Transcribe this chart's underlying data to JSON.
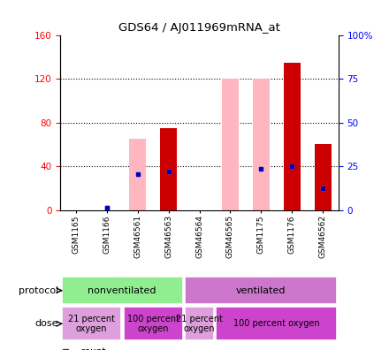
{
  "title": "GDS64 / AJ011969mRNA_at",
  "samples": [
    "GSM1165",
    "GSM1166",
    "GSM46561",
    "GSM46563",
    "GSM46564",
    "GSM46565",
    "GSM1175",
    "GSM1176",
    "GSM46562"
  ],
  "left_ylim": [
    0,
    160
  ],
  "right_ylim": [
    0,
    100
  ],
  "left_yticks": [
    0,
    40,
    80,
    120,
    160
  ],
  "right_yticks": [
    0,
    25,
    50,
    75,
    100
  ],
  "right_yticklabels": [
    "0",
    "25",
    "50",
    "75",
    "100%"
  ],
  "pink_bars": [
    0,
    0,
    65,
    75,
    0,
    120,
    120,
    135,
    60
  ],
  "red_bars": [
    0,
    0,
    0,
    75,
    0,
    0,
    0,
    135,
    60
  ],
  "blue_rank": [
    0,
    2,
    33,
    35,
    0,
    0,
    38,
    40,
    20
  ],
  "light_blue_rank": [
    0,
    2,
    33,
    35,
    0,
    0,
    38,
    40,
    20
  ],
  "has_pink": [
    0,
    0,
    1,
    1,
    0,
    1,
    1,
    1,
    1
  ],
  "has_red": [
    0,
    0,
    0,
    1,
    0,
    0,
    0,
    1,
    1
  ],
  "protocol_spans": [
    {
      "label": "nonventilated",
      "start": 0,
      "end": 3,
      "color": "#90EE90"
    },
    {
      "label": "ventilated",
      "start": 4,
      "end": 8,
      "color": "#CC77CC"
    }
  ],
  "dose_spans": [
    {
      "label": "21 percent\noxygen",
      "start": 0,
      "end": 1,
      "color": "#DDA0DD"
    },
    {
      "label": "100 percent\noxygen",
      "start": 2,
      "end": 3,
      "color": "#CC44CC"
    },
    {
      "label": "21 percent\noxygen",
      "start": 4,
      "end": 4,
      "color": "#DDA0DD"
    },
    {
      "label": "100 percent oxygen",
      "start": 5,
      "end": 8,
      "color": "#CC44CC"
    }
  ],
  "pink_color": "#FFB6C1",
  "red_color": "#CC0000",
  "blue_color": "#0000BB",
  "light_blue_color": "#AACCEE",
  "background": "#FFFFFF"
}
